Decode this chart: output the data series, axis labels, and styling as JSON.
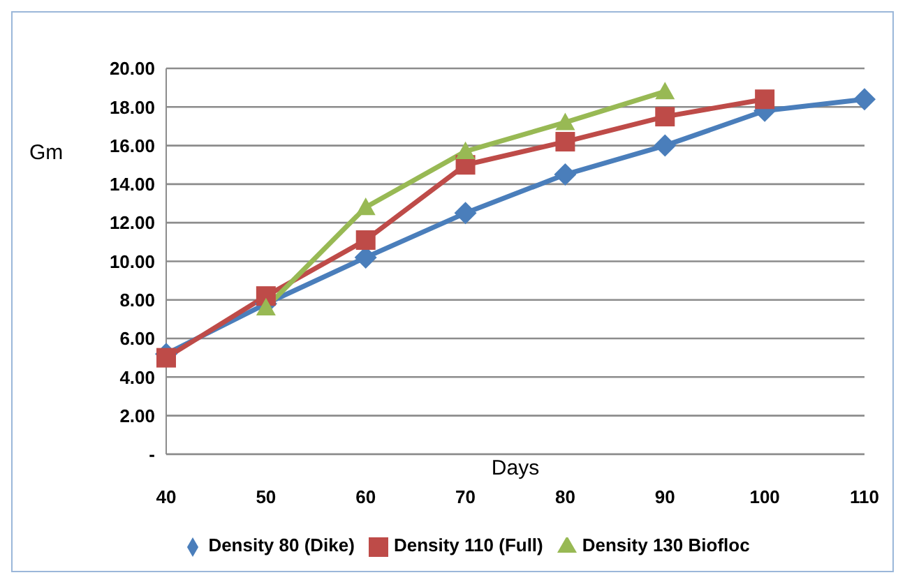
{
  "chart_data": {
    "type": "line",
    "xlabel": "Days",
    "ylabel": "Gm",
    "categories": [
      "40",
      "50",
      "60",
      "70",
      "80",
      "90",
      "100",
      "110"
    ],
    "series": [
      {
        "name": "Density 80 (Dike)",
        "color": "#4a7ebb",
        "marker": "diamond",
        "values": [
          5.2,
          7.8,
          10.2,
          12.5,
          14.5,
          16.0,
          17.8,
          18.4
        ]
      },
      {
        "name": "Density 110 (Full)",
        "color": "#be4b48",
        "marker": "square",
        "values": [
          5.0,
          8.2,
          11.1,
          15.0,
          16.2,
          17.5,
          18.4,
          null
        ]
      },
      {
        "name": "Density 130 Biofloc",
        "color": "#98b954",
        "marker": "triangle",
        "values": [
          null,
          7.6,
          12.8,
          15.7,
          17.2,
          18.8,
          null,
          null
        ]
      }
    ],
    "ylim": [
      0,
      20
    ],
    "yticks": [
      {
        "value": 0,
        "label": "-"
      },
      {
        "value": 2,
        "label": "2.00"
      },
      {
        "value": 4,
        "label": "4.00"
      },
      {
        "value": 6,
        "label": "6.00"
      },
      {
        "value": 8,
        "label": "8.00"
      },
      {
        "value": 10,
        "label": "10.00"
      },
      {
        "value": 12,
        "label": "12.00"
      },
      {
        "value": 14,
        "label": "14.00"
      },
      {
        "value": 16,
        "label": "16.00"
      },
      {
        "value": 18,
        "label": "18.00"
      },
      {
        "value": 20,
        "label": "20.00"
      }
    ],
    "grid": "y",
    "legend": "bottom",
    "line_style": "solid"
  }
}
